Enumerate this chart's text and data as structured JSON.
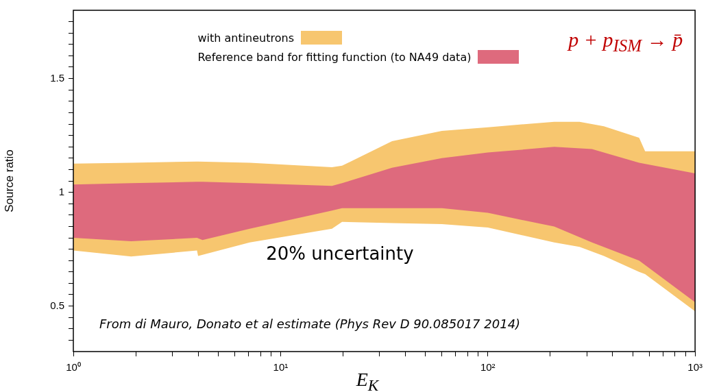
{
  "chart_data": {
    "type": "area",
    "xlabel": "E$_{K}$",
    "ylabel": "Source ratio",
    "log": "x",
    "legend": "top",
    "xlim": [
      1,
      1000
    ],
    "ylim": [
      0.3,
      1.8
    ],
    "xticks": [
      {
        "value": 1,
        "label": "10⁰"
      },
      {
        "value": 2,
        "label": null
      },
      {
        "value": 3,
        "label": null
      },
      {
        "value": 4,
        "label": null
      },
      {
        "value": 5,
        "label": null
      },
      {
        "value": 6,
        "label": null
      },
      {
        "value": 7,
        "label": null
      },
      {
        "value": 8,
        "label": null
      },
      {
        "value": 9,
        "label": null
      },
      {
        "value": 10,
        "label": "10¹"
      },
      {
        "value": 20,
        "label": null
      },
      {
        "value": 30,
        "label": null
      },
      {
        "value": 40,
        "label": null
      },
      {
        "value": 50,
        "label": null
      },
      {
        "value": 60,
        "label": null
      },
      {
        "value": 70,
        "label": null
      },
      {
        "value": 80,
        "label": null
      },
      {
        "value": 90,
        "label": null
      },
      {
        "value": 100,
        "label": "10²"
      },
      {
        "value": 200,
        "label": null
      },
      {
        "value": 300,
        "label": null
      },
      {
        "value": 400,
        "label": null
      },
      {
        "value": 500,
        "label": null
      },
      {
        "value": 600,
        "label": null
      },
      {
        "value": 700,
        "label": null
      },
      {
        "value": 800,
        "label": null
      },
      {
        "value": 900,
        "label": null
      },
      {
        "value": 1000,
        "label": "10³"
      }
    ],
    "yticks": [
      {
        "value": 0.35,
        "label": null
      },
      {
        "value": 0.4,
        "label": null
      },
      {
        "value": 0.45,
        "label": null
      },
      0.5,
      {
        "value": 0.55,
        "label": null
      },
      {
        "value": 0.6,
        "label": null
      },
      {
        "value": 0.65,
        "label": null
      },
      {
        "value": 0.7,
        "label": null
      },
      {
        "value": 0.75,
        "label": null
      },
      {
        "value": 0.8,
        "label": null
      },
      {
        "value": 0.85,
        "label": null
      },
      {
        "value": 0.9,
        "label": null
      },
      {
        "value": 0.95,
        "label": null
      },
      1,
      {
        "value": 1.05,
        "label": null
      },
      {
        "value": 1.1,
        "label": null
      },
      {
        "value": 1.15,
        "label": null
      },
      {
        "value": 1.2,
        "label": null
      },
      {
        "value": 1.25,
        "label": null
      },
      {
        "value": 1.3,
        "label": null
      },
      {
        "value": 1.35,
        "label": null
      },
      {
        "value": 1.4,
        "label": null
      },
      {
        "value": 1.45,
        "label": null
      },
      1.5,
      {
        "value": 1.55,
        "label": null
      },
      {
        "value": 1.6,
        "label": null
      },
      {
        "value": 1.65,
        "label": null
      },
      {
        "value": 1.7,
        "label": null
      },
      {
        "value": 1.75,
        "label": null
      }
    ],
    "series": [
      {
        "name": "with antineutrons",
        "color": "#f7c66f",
        "x": [
          1,
          1.9,
          3.95,
          4.0,
          7.1,
          17.7,
          19.8,
          34.5,
          60,
          100,
          209,
          277,
          363,
          537,
          574,
          1000
        ],
        "values": [
          null,
          null,
          null,
          null,
          null,
          null,
          null,
          null,
          null,
          null,
          null,
          null,
          null,
          null,
          null,
          null
        ],
        "upper": [
          1.126,
          1.13,
          1.135,
          1.135,
          1.13,
          1.11,
          1.117,
          1.225,
          1.27,
          1.286,
          1.31,
          1.31,
          1.29,
          1.24,
          1.18,
          1.18
        ],
        "lower": [
          0.744,
          0.718,
          0.744,
          0.72,
          0.78,
          0.84,
          0.87,
          0.865,
          0.86,
          0.845,
          0.78,
          0.76,
          0.72,
          0.65,
          0.64,
          0.477
        ]
      },
      {
        "name": "Reference band for fitting function (to NA49 data)",
        "color": "#de6a7d",
        "x": [
          1,
          1.9,
          3.95,
          4.2,
          7.1,
          17.7,
          19.8,
          34.5,
          60,
          100,
          183,
          209,
          318,
          537,
          1000
        ],
        "values": [
          null,
          null,
          null,
          null,
          null,
          null,
          null,
          null,
          null,
          null,
          null,
          null,
          null,
          null,
          null
        ],
        "upper": [
          1.034,
          1.04,
          1.046,
          1.046,
          1.04,
          1.028,
          1.04,
          1.108,
          1.15,
          1.175,
          1.195,
          1.2,
          1.19,
          1.13,
          1.083
        ],
        "lower": [
          0.8,
          0.785,
          0.8,
          0.79,
          0.84,
          0.92,
          0.93,
          0.93,
          0.93,
          0.91,
          0.86,
          0.85,
          0.78,
          0.7,
          0.517
        ]
      }
    ],
    "annotations": [
      "p + p$_{ISM}$ → p̄",
      "20% uncertainty",
      "From di Mauro, Donato et al estimate (Phys Rev D 90.085017 2014)"
    ]
  }
}
